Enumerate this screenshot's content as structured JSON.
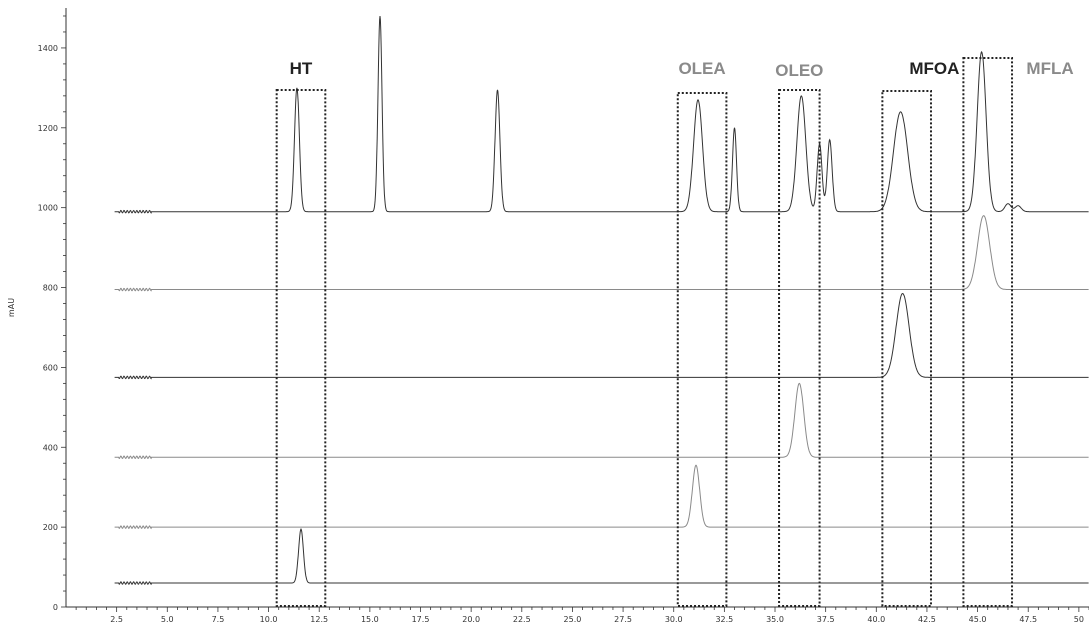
{
  "chart_data": {
    "type": "line",
    "ylabel": "mAU",
    "xlabel": "",
    "xlim": [
      0,
      50.5
    ],
    "ylim": [
      0,
      1500
    ],
    "x_ticks": [
      "2.5",
      "5.0",
      "7.5",
      "10.0",
      "12.5",
      "15.0",
      "17.5",
      "20.0",
      "22.5",
      "25.0",
      "27.5",
      "30.0",
      "32.5",
      "35.0",
      "37.5",
      "40.0",
      "42.5",
      "45.0",
      "47.5",
      "50"
    ],
    "y_ticks": [
      "0",
      "200",
      "400",
      "600",
      "800",
      "1000",
      "1200",
      "1400"
    ],
    "colors": {
      "dark": "#333333",
      "gray": "#8a8a8a"
    },
    "series": [
      {
        "baseline": 990,
        "color": "dark",
        "peaks": [
          [
            11.4,
            310,
            0.12
          ],
          [
            15.5,
            490,
            0.1
          ],
          [
            21.3,
            305,
            0.12
          ],
          [
            31.2,
            280,
            0.22
          ],
          [
            33.0,
            210,
            0.1
          ],
          [
            36.3,
            290,
            0.22
          ],
          [
            37.2,
            170,
            0.12
          ],
          [
            37.7,
            180,
            0.12
          ],
          [
            41.2,
            250,
            0.35
          ],
          [
            45.2,
            400,
            0.22
          ],
          [
            46.5,
            20,
            0.15
          ],
          [
            47.0,
            15,
            0.15
          ]
        ]
      },
      {
        "baseline": 795,
        "color": "gray",
        "peaks": [
          [
            45.3,
            185,
            0.3
          ]
        ]
      },
      {
        "baseline": 575,
        "color": "dark",
        "peaks": [
          [
            41.3,
            210,
            0.32
          ]
        ]
      },
      {
        "baseline": 375,
        "color": "gray",
        "peaks": [
          [
            36.2,
            185,
            0.22
          ]
        ]
      },
      {
        "baseline": 200,
        "color": "gray",
        "peaks": [
          [
            31.1,
            155,
            0.18
          ]
        ]
      },
      {
        "baseline": 60,
        "color": "dark",
        "peaks": [
          [
            11.6,
            135,
            0.12
          ]
        ]
      }
    ],
    "annotations": [
      {
        "label": "HT",
        "color": "#222222",
        "x0": 10.4,
        "x1": 12.8
      },
      {
        "label": "OLEA",
        "color": "#8a8a8a",
        "x0": 30.2,
        "x1": 32.6
      },
      {
        "label": "OLEO",
        "color": "#8a8a8a",
        "x0": 35.2,
        "x1": 37.2
      },
      {
        "label": "MFOA",
        "color": "#222222",
        "x0": 40.3,
        "x1": 42.7
      },
      {
        "label": "MFLA",
        "color": "#8a8a8a",
        "x0": 44.3,
        "x1": 46.7
      }
    ]
  }
}
